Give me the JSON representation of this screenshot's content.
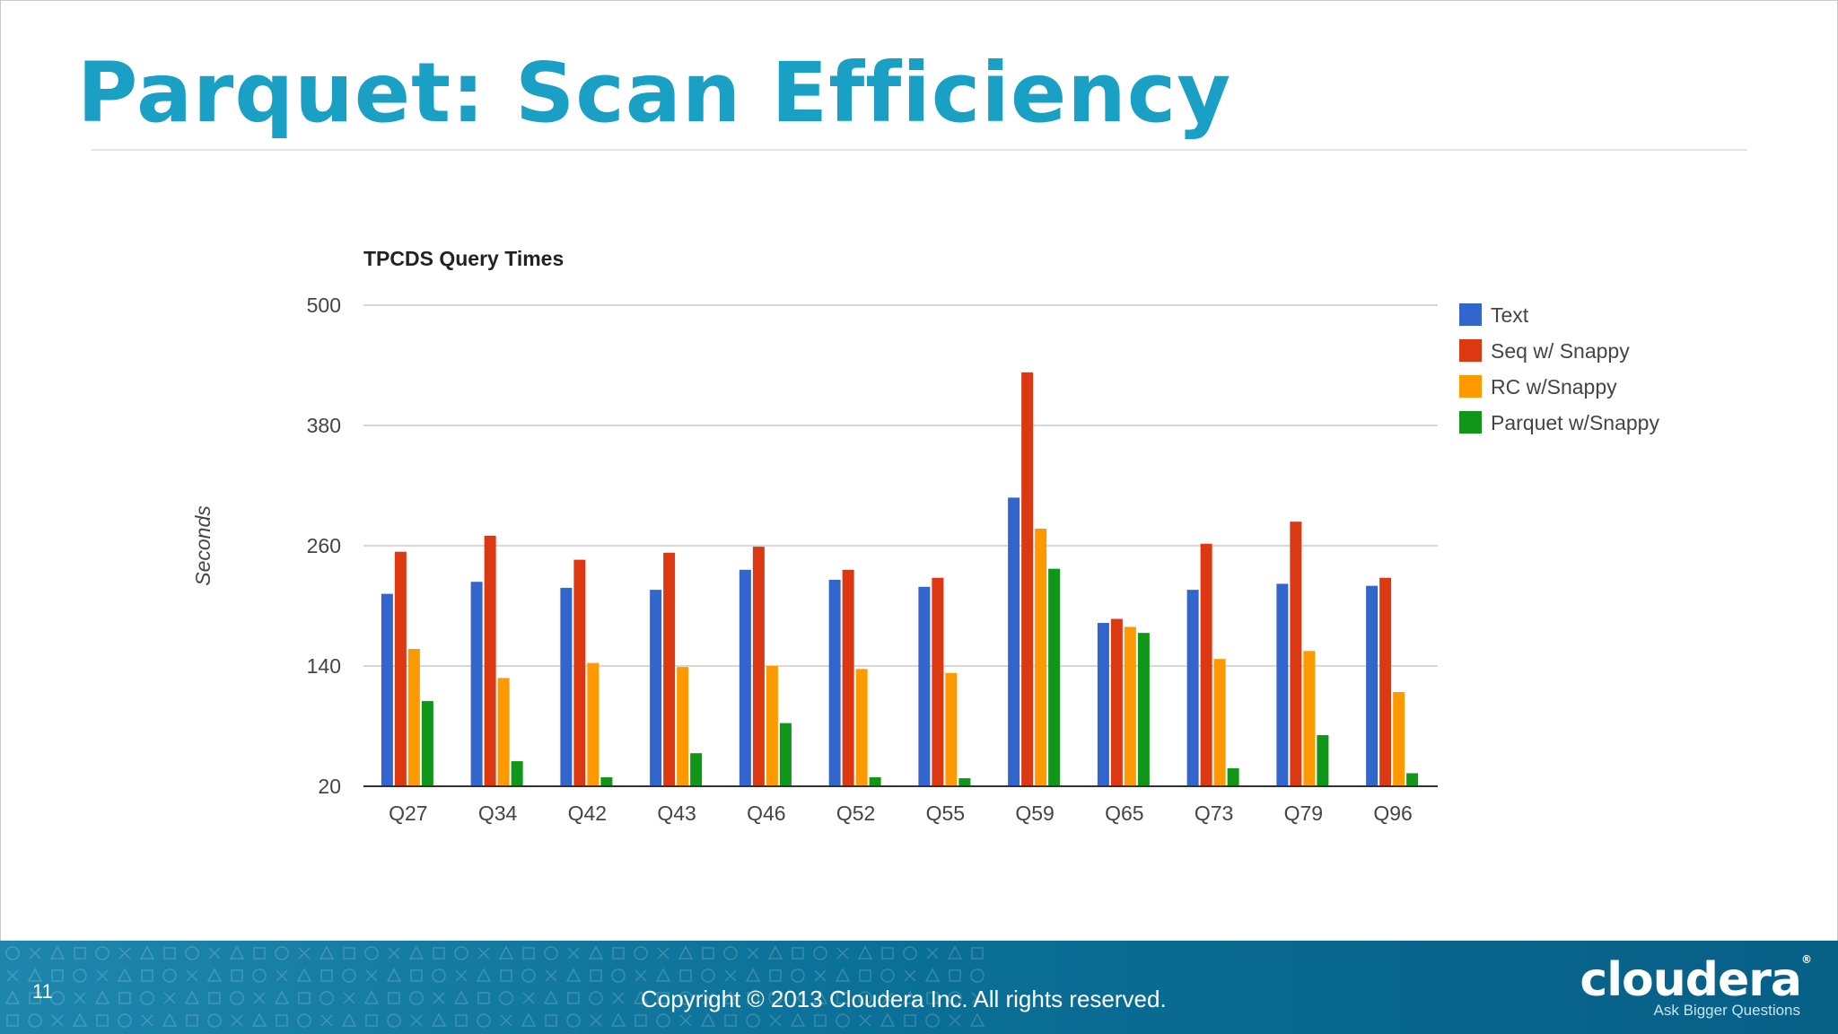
{
  "slide": {
    "title": "Parquet: Scan Efficiency",
    "page_number": "11",
    "copyright": "Copyright © 2013 Cloudera Inc. All rights reserved.",
    "logo_text": "cloudera",
    "logo_reg": "®",
    "tagline": "Ask Bigger Questions",
    "colors": {
      "title": "#1aa0c4",
      "footer": "#0a6f96"
    }
  },
  "chart_data": {
    "type": "bar",
    "title": "TPCDS Query Times",
    "ylabel": "Seconds",
    "xlabel": "",
    "ylim": [
      20,
      500
    ],
    "yticks": [
      20,
      140,
      260,
      380,
      500
    ],
    "grid": true,
    "legend_position": "right",
    "categories": [
      "Q27",
      "Q34",
      "Q42",
      "Q43",
      "Q46",
      "Q52",
      "Q55",
      "Q59",
      "Q65",
      "Q73",
      "Q79",
      "Q96"
    ],
    "series": [
      {
        "name": "Text",
        "color": "#3366cc",
        "values": [
          212,
          224,
          218,
          216,
          236,
          226,
          219,
          308,
          183,
          216,
          222,
          220
        ]
      },
      {
        "name": "Seq w/ Snappy",
        "color": "#dc3912",
        "values": [
          254,
          270,
          246,
          253,
          259,
          236,
          228,
          433,
          187,
          262,
          284,
          228
        ]
      },
      {
        "name": "RC w/Snappy",
        "color": "#ff9900",
        "values": [
          157,
          128,
          143,
          139,
          140,
          137,
          133,
          277,
          179,
          147,
          155,
          114
        ]
      },
      {
        "name": "Parquet w/Snappy",
        "color": "#109618",
        "values": [
          105,
          45,
          29,
          53,
          83,
          29,
          28,
          237,
          173,
          38,
          71,
          33
        ]
      }
    ]
  }
}
